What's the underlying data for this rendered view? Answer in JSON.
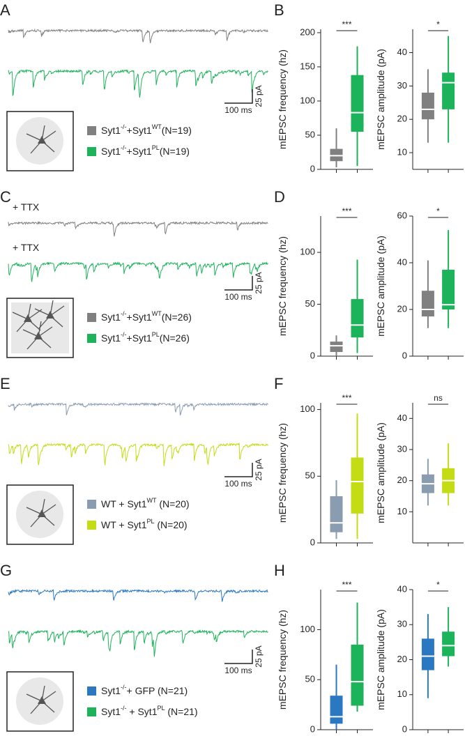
{
  "rows": [
    {
      "trace_panel": "A",
      "chart_panel": "B",
      "trace_labels": [],
      "legend": [
        [
          {
            "text": "Syt1"
          },
          {
            "text": "-/-",
            "sup": true
          },
          {
            "text": "+Syt1"
          },
          {
            "text": "WT",
            "sup": true
          },
          {
            "text": "(N=19)"
          }
        ],
        [
          {
            "text": "Syt1"
          },
          {
            "text": "-/-",
            "sup": true
          },
          {
            "text": "+Syt1"
          },
          {
            "text": "PL",
            "sup": true
          },
          {
            "text": "(N=19)"
          }
        ]
      ],
      "scale_x": "100 ms",
      "scale_y": "25 pA"
    },
    {
      "trace_panel": "C",
      "chart_panel": "D",
      "trace_labels": [
        "+ TTX",
        "+ TTX"
      ],
      "legend": [
        [
          {
            "text": "Syt1"
          },
          {
            "text": "-/-",
            "sup": true
          },
          {
            "text": "+Syt1"
          },
          {
            "text": "WT",
            "sup": true
          },
          {
            "text": "(N=26)"
          }
        ],
        [
          {
            "text": "Syt1"
          },
          {
            "text": "-/-",
            "sup": true
          },
          {
            "text": "+Syt1"
          },
          {
            "text": "PL",
            "sup": true
          },
          {
            "text": "(N=26)"
          }
        ]
      ],
      "scale_x": "100 ms",
      "scale_y": "25 pA"
    },
    {
      "trace_panel": "E",
      "chart_panel": "F",
      "trace_labels": [],
      "legend": [
        [
          {
            "text": "WT + Syt1"
          },
          {
            "text": "WT",
            "sup": true
          },
          {
            "text": " (N=20)"
          }
        ],
        [
          {
            "text": "WT + Syt1"
          },
          {
            "text": "PL",
            "sup": true
          },
          {
            "text": " (N=20)"
          }
        ]
      ],
      "scale_x": "100 ms",
      "scale_y": "25 pA"
    },
    {
      "trace_panel": "G",
      "chart_panel": "H",
      "trace_labels": [],
      "legend": [
        [
          {
            "text": "Syt1"
          },
          {
            "text": "-/-",
            "sup": true
          },
          {
            "text": "+ GFP (N=21)"
          }
        ],
        [
          {
            "text": "Syt1"
          },
          {
            "text": "-/-",
            "sup": true
          },
          {
            "text": " + Syt1"
          },
          {
            "text": "PL",
            "sup": true
          },
          {
            "text": " (N=21)"
          }
        ]
      ],
      "scale_x": "100 ms",
      "scale_y": "25 pA"
    }
  ],
  "chart_data": [
    {
      "type": "box",
      "ylabel": "mEPSC frequency (hz)",
      "ylim": [
        0,
        205
      ],
      "yticks": [
        0,
        50,
        100,
        150,
        200
      ],
      "significance": "***",
      "series": [
        {
          "color": "#808080",
          "min": 3,
          "q1": 12,
          "median": 20,
          "q3": 30,
          "max": 60
        },
        {
          "color": "#1db35a",
          "min": 5,
          "q1": 55,
          "median": 83,
          "q3": 138,
          "max": 180
        }
      ]
    },
    {
      "type": "box",
      "ylabel": "mEPSC amplitude (pA)",
      "ylim": [
        5,
        47
      ],
      "yticks": [
        10,
        20,
        30,
        40
      ],
      "significance": "*",
      "series": [
        {
          "color": "#808080",
          "min": 13,
          "q1": 20,
          "median": 23,
          "q3": 28,
          "max": 35
        },
        {
          "color": "#1db35a",
          "min": 13,
          "q1": 23,
          "median": 31,
          "q3": 34,
          "max": 45
        }
      ]
    },
    {
      "type": "box",
      "ylabel": "mEPSC frequency (hz)",
      "ylim": [
        0,
        135
      ],
      "yticks": [
        0,
        50,
        100
      ],
      "significance": "***",
      "series": [
        {
          "color": "#808080",
          "min": 0,
          "q1": 4,
          "median": 10,
          "q3": 14,
          "max": 20
        },
        {
          "color": "#1db35a",
          "min": 3,
          "q1": 18,
          "median": 30,
          "q3": 55,
          "max": 93
        }
      ]
    },
    {
      "type": "box",
      "ylabel": "mEPSC amplitude (pA)",
      "ylim": [
        0,
        60
      ],
      "yticks": [
        0,
        20,
        40,
        60
      ],
      "significance": "*",
      "series": [
        {
          "color": "#808080",
          "min": 12,
          "q1": 17,
          "median": 20,
          "q3": 28,
          "max": 41
        },
        {
          "color": "#1db35a",
          "min": 12,
          "q1": 20,
          "median": 22,
          "q3": 37,
          "max": 54
        }
      ]
    },
    {
      "type": "box",
      "ylabel": "mEPSC frequency (hz)",
      "ylim": [
        0,
        105
      ],
      "yticks": [
        0,
        50,
        100
      ],
      "significance": "***",
      "series": [
        {
          "color": "#8a9db0",
          "min": 3,
          "q1": 8,
          "median": 15,
          "q3": 35,
          "max": 47
        },
        {
          "color": "#c3dc14",
          "min": 3,
          "q1": 22,
          "median": 46,
          "q3": 64,
          "max": 97
        }
      ]
    },
    {
      "type": "box",
      "ylabel": "mEPSC amplitude (pA)",
      "ylim": [
        0,
        45
      ],
      "yticks": [
        10,
        20,
        30,
        40
      ],
      "significance": "ns",
      "series": [
        {
          "color": "#8a9db0",
          "min": 12,
          "q1": 16,
          "median": 19,
          "q3": 22,
          "max": 27
        },
        {
          "color": "#c3dc14",
          "min": 12,
          "q1": 16,
          "median": 20,
          "q3": 24,
          "max": 32
        }
      ]
    },
    {
      "type": "box",
      "ylabel": "mEPSC frequency (hz)",
      "ylim": [
        0,
        140
      ],
      "yticks": [
        0,
        50,
        100
      ],
      "significance": "***",
      "series": [
        {
          "color": "#2a78c2",
          "min": 0,
          "q1": 6,
          "median": 13,
          "q3": 34,
          "max": 65
        },
        {
          "color": "#1db35a",
          "min": 18,
          "q1": 24,
          "median": 48,
          "q3": 85,
          "max": 127
        }
      ]
    },
    {
      "type": "box",
      "ylabel": "mEPSC amplitude (pA)",
      "ylim": [
        0,
        40
      ],
      "yticks": [
        0,
        10,
        20,
        30,
        40
      ],
      "significance": "*",
      "series": [
        {
          "color": "#2a78c2",
          "min": 9,
          "q1": 17,
          "median": 21,
          "q3": 26,
          "max": 33
        },
        {
          "color": "#1db35a",
          "min": 18,
          "q1": 21,
          "median": 24,
          "q3": 28,
          "max": 35
        }
      ]
    }
  ]
}
